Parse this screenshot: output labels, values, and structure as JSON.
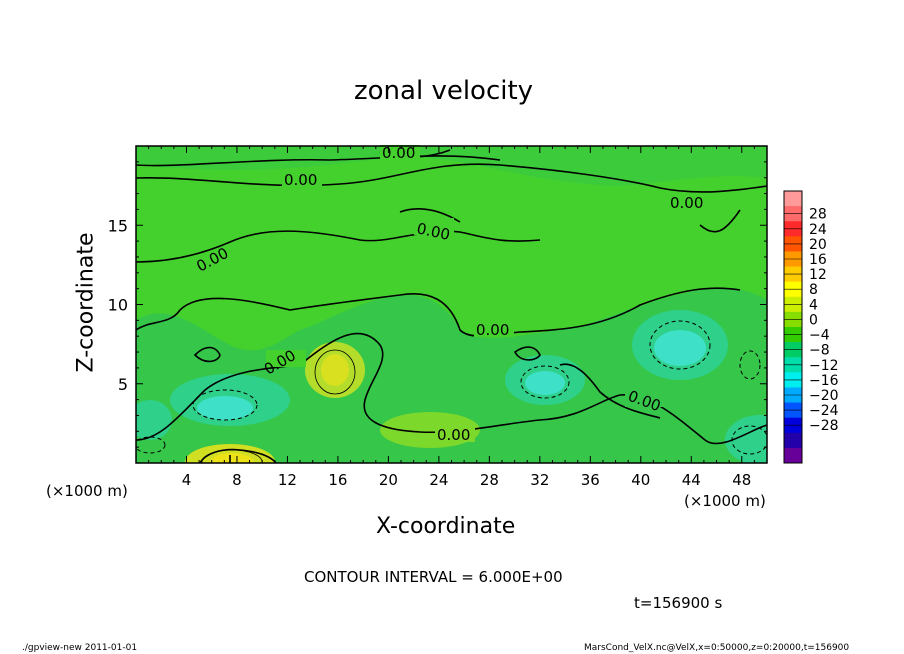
{
  "chart_data": {
    "type": "heatmap",
    "title": "zonal velocity",
    "xlabel": "X-coordinate",
    "ylabel": "Z-coordinate",
    "x_unit": "(×1000 m)",
    "y_unit": "(×1000 m)",
    "xlim": [
      0,
      50
    ],
    "ylim": [
      0,
      20
    ],
    "x_ticks": [
      "4",
      "8",
      "12",
      "16",
      "20",
      "24",
      "28",
      "32",
      "36",
      "40",
      "44",
      "48"
    ],
    "y_ticks": [
      "5",
      "10",
      "15"
    ],
    "contour_labels": [
      "0.00",
      "0.00",
      "0.00",
      "0.00",
      "0.00",
      "0.00",
      "0.00",
      "0.00",
      "0.00"
    ],
    "colorbar": {
      "labels": [
        "28",
        "24",
        "20",
        "16",
        "12",
        "8",
        "4",
        "0",
        "−4",
        "−8",
        "−12",
        "−16",
        "−20",
        "−24",
        "−28"
      ],
      "colors": [
        "#ff9a9a",
        "#ff6a6a",
        "#ff2a2a",
        "#ff5500",
        "#ff9900",
        "#ffcc00",
        "#ffff00",
        "#ccee00",
        "#88dd00",
        "#33cc00",
        "#00cc66",
        "#00ddaa",
        "#00eeee",
        "#00aaff",
        "#0055ff",
        "#0000dd",
        "#2200aa",
        "#660099"
      ]
    },
    "contour_interval": "CONTOUR INTERVAL = 6.000E+00",
    "time_label": "t=156900 s"
  },
  "footer": {
    "left": "./gpview-new   2011-01-01",
    "right": "MarsCond_VelX.nc@VelX,x=0:50000,z=0:20000,t=156900"
  }
}
